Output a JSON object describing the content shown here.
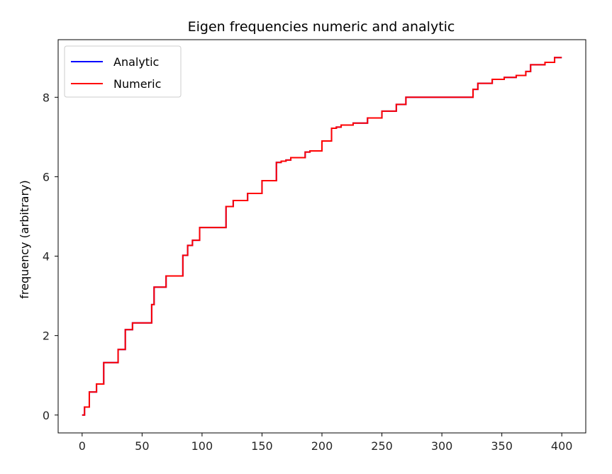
{
  "chart_data": {
    "type": "line",
    "title": "Eigen frequencies numeric and analytic",
    "xlabel": "",
    "ylabel": "frequency (arbitrary)",
    "xlim": [
      -20,
      420
    ],
    "ylim": [
      -0.45,
      9.45
    ],
    "xticks": [
      0,
      50,
      100,
      150,
      200,
      250,
      300,
      350,
      400
    ],
    "yticks": [
      0,
      2,
      4,
      6,
      8
    ],
    "grid": false,
    "legend_position": "top-left",
    "step_starts": [
      0,
      2,
      6,
      12,
      18,
      30,
      36,
      42,
      52,
      58,
      60,
      70,
      84,
      88,
      92,
      98,
      108,
      120,
      124,
      126,
      138,
      150,
      162,
      166,
      170,
      174,
      186,
      190,
      200,
      208,
      212,
      216,
      226,
      238,
      250,
      262,
      266,
      270,
      326,
      330,
      342,
      352,
      362,
      370,
      374,
      386,
      394,
      400
    ],
    "step_values": [
      0,
      0.2,
      0.58,
      0.78,
      1.32,
      1.65,
      2.15,
      2.32,
      2.32,
      2.78,
      3.22,
      3.5,
      4.02,
      4.27,
      4.4,
      4.72,
      4.72,
      5.25,
      5.25,
      5.4,
      5.58,
      5.9,
      6.36,
      6.39,
      6.42,
      6.48,
      6.62,
      6.65,
      6.9,
      7.22,
      7.25,
      7.3,
      7.35,
      7.48,
      7.65,
      7.82,
      7.82,
      8.0,
      8.2,
      8.35,
      8.45,
      8.5,
      8.55,
      8.65,
      8.82,
      8.88,
      9.0,
      9.0
    ],
    "series": [
      {
        "name": "Analytic",
        "color": "#0000ff"
      },
      {
        "name": "Numeric",
        "color": "#ff0000"
      }
    ]
  }
}
